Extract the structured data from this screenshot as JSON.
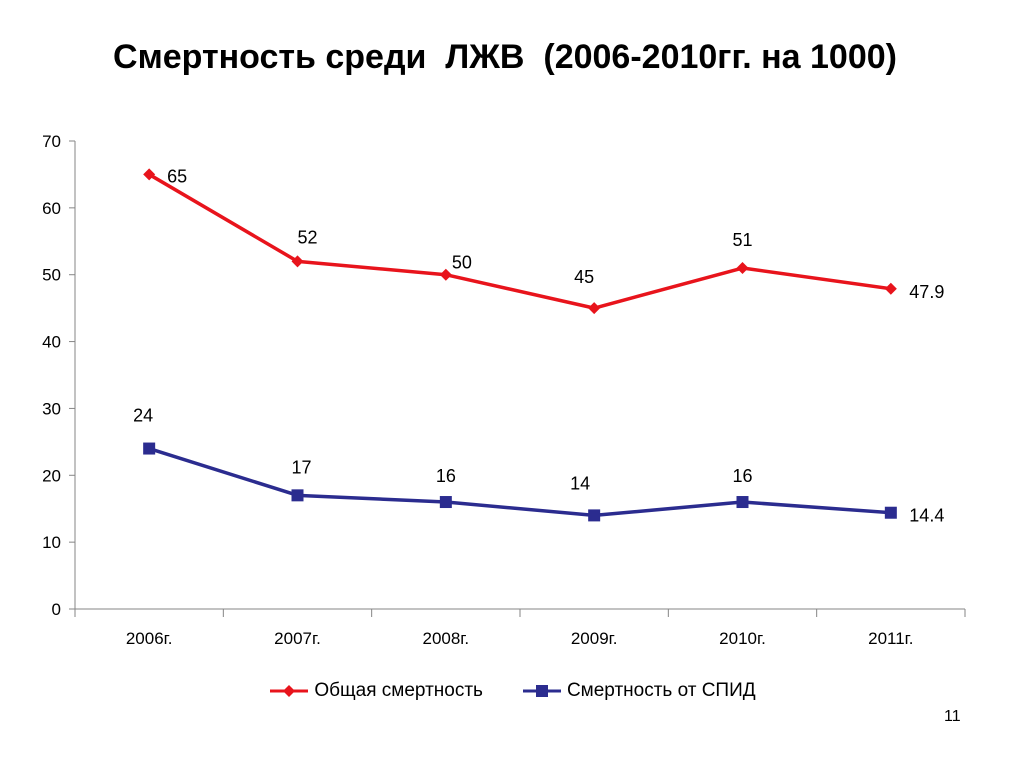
{
  "slide": {
    "title": "Смертность среди  ЛЖВ  (2006-2010гг. на 1000)",
    "page_number": "11"
  },
  "colors": {
    "series_1": "#e8141c",
    "series_2": "#2b2c8f",
    "axis": "#858585"
  },
  "chart_data": {
    "type": "line",
    "title": "",
    "xlabel": "",
    "ylabel": "",
    "categories": [
      "2006г.",
      "2007г.",
      "2008г.",
      "2009г.",
      "2010г.",
      "2011г."
    ],
    "ylim": [
      0,
      70
    ],
    "yticks": [
      0,
      10,
      20,
      30,
      40,
      50,
      60,
      70
    ],
    "grid": false,
    "legend_position": "bottom",
    "series": [
      {
        "name": "Общая смертность",
        "marker": "diamond",
        "color": "#e8141c",
        "values": [
          65,
          52,
          50,
          45,
          51,
          47.9
        ],
        "labels": [
          "65",
          "52",
          "50",
          "45",
          "51",
          "47.9"
        ]
      },
      {
        "name": "Смертность от СПИД",
        "marker": "square",
        "color": "#2b2c8f",
        "values": [
          24,
          17,
          16,
          14,
          16,
          14.4
        ],
        "labels": [
          "24",
          "17",
          "16",
          "14",
          "16",
          "14.4"
        ]
      }
    ]
  }
}
